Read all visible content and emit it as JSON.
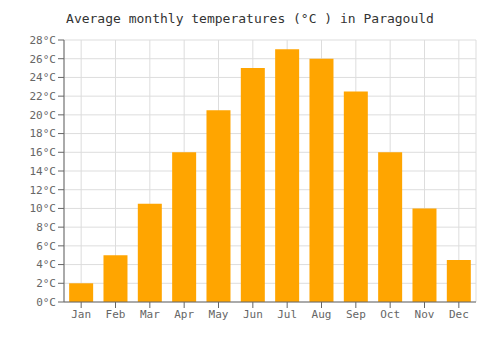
{
  "chart_data": {
    "type": "bar",
    "title": "Average monthly temperatures (°C ) in Paragould",
    "categories": [
      "Jan",
      "Feb",
      "Mar",
      "Apr",
      "May",
      "Jun",
      "Jul",
      "Aug",
      "Sep",
      "Oct",
      "Nov",
      "Dec"
    ],
    "values": [
      2,
      5,
      10.5,
      16,
      20.5,
      25,
      27,
      26,
      22.5,
      16,
      10,
      4.5
    ],
    "color": "#FFA500",
    "ylim": [
      0,
      28
    ],
    "yticks": [
      {
        "value": 0,
        "label": "0°C"
      },
      {
        "value": 2,
        "label": "2°C"
      },
      {
        "value": 4,
        "label": "4°C"
      },
      {
        "value": 6,
        "label": "6°C"
      },
      {
        "value": 8,
        "label": "8°C"
      },
      {
        "value": 10,
        "label": "10°C"
      },
      {
        "value": 12,
        "label": "12°C"
      },
      {
        "value": 14,
        "label": "14°C"
      },
      {
        "value": 16,
        "label": "16°C"
      },
      {
        "value": 18,
        "label": "18°C"
      },
      {
        "value": 20,
        "label": "20°C"
      },
      {
        "value": 22,
        "label": "22°C"
      },
      {
        "value": 24,
        "label": "24°C"
      },
      {
        "value": 26,
        "label": "26°C"
      },
      {
        "value": 28,
        "label": "28°C"
      }
    ],
    "grid": true
  }
}
